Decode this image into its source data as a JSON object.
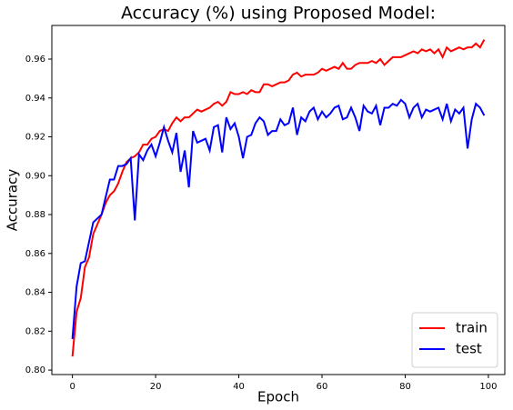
{
  "chart_data": {
    "type": "line",
    "title": "Accuracy (%) using Proposed Model:",
    "x_label": "Epoch",
    "y_label": "Accuracy",
    "x": [
      0,
      1,
      2,
      3,
      4,
      5,
      6,
      7,
      8,
      9,
      10,
      11,
      12,
      13,
      14,
      15,
      16,
      17,
      18,
      19,
      20,
      21,
      22,
      23,
      24,
      25,
      26,
      27,
      28,
      29,
      30,
      31,
      32,
      33,
      34,
      35,
      36,
      37,
      38,
      39,
      40,
      41,
      42,
      43,
      44,
      45,
      46,
      47,
      48,
      49,
      50,
      51,
      52,
      53,
      54,
      55,
      56,
      57,
      58,
      59,
      60,
      61,
      62,
      63,
      64,
      65,
      66,
      67,
      68,
      69,
      70,
      71,
      72,
      73,
      74,
      75,
      76,
      77,
      78,
      79,
      80,
      81,
      82,
      83,
      84,
      85,
      86,
      87,
      88,
      89,
      90,
      91,
      92,
      93,
      94,
      95,
      96,
      97,
      98,
      99
    ],
    "series": [
      {
        "name": "train",
        "color": "#ff0000",
        "values": [
          0.807,
          0.83,
          0.837,
          0.853,
          0.858,
          0.87,
          0.875,
          0.88,
          0.886,
          0.89,
          0.892,
          0.896,
          0.902,
          0.907,
          0.909,
          0.91,
          0.912,
          0.916,
          0.916,
          0.919,
          0.92,
          0.923,
          0.924,
          0.923,
          0.927,
          0.93,
          0.928,
          0.93,
          0.93,
          0.932,
          0.934,
          0.933,
          0.934,
          0.935,
          0.937,
          0.938,
          0.936,
          0.938,
          0.943,
          0.942,
          0.942,
          0.943,
          0.942,
          0.944,
          0.943,
          0.943,
          0.947,
          0.947,
          0.946,
          0.947,
          0.948,
          0.948,
          0.949,
          0.952,
          0.953,
          0.951,
          0.952,
          0.952,
          0.952,
          0.953,
          0.955,
          0.954,
          0.955,
          0.956,
          0.955,
          0.958,
          0.955,
          0.955,
          0.957,
          0.958,
          0.958,
          0.958,
          0.959,
          0.958,
          0.96,
          0.957,
          0.959,
          0.961,
          0.961,
          0.961,
          0.962,
          0.963,
          0.964,
          0.963,
          0.965,
          0.964,
          0.965,
          0.963,
          0.965,
          0.961,
          0.966,
          0.964,
          0.965,
          0.966,
          0.965,
          0.966,
          0.966,
          0.968,
          0.966,
          0.97
        ]
      },
      {
        "name": "test",
        "color": "#0000ff",
        "values": [
          0.816,
          0.843,
          0.855,
          0.856,
          0.866,
          0.876,
          0.878,
          0.88,
          0.889,
          0.898,
          0.898,
          0.905,
          0.905,
          0.906,
          0.909,
          0.877,
          0.911,
          0.908,
          0.913,
          0.916,
          0.91,
          0.917,
          0.925,
          0.918,
          0.912,
          0.922,
          0.902,
          0.913,
          0.894,
          0.923,
          0.917,
          0.918,
          0.919,
          0.913,
          0.925,
          0.926,
          0.912,
          0.93,
          0.924,
          0.927,
          0.92,
          0.909,
          0.92,
          0.921,
          0.927,
          0.93,
          0.928,
          0.921,
          0.923,
          0.923,
          0.929,
          0.926,
          0.927,
          0.935,
          0.921,
          0.93,
          0.928,
          0.933,
          0.935,
          0.929,
          0.933,
          0.93,
          0.932,
          0.935,
          0.936,
          0.929,
          0.93,
          0.935,
          0.93,
          0.923,
          0.936,
          0.933,
          0.932,
          0.936,
          0.926,
          0.935,
          0.935,
          0.937,
          0.936,
          0.939,
          0.937,
          0.93,
          0.935,
          0.937,
          0.93,
          0.934,
          0.933,
          0.934,
          0.935,
          0.929,
          0.937,
          0.928,
          0.934,
          0.932,
          0.935,
          0.914,
          0.929,
          0.937,
          0.935,
          0.931
        ]
      }
    ],
    "xlim": [
      -4.95,
      103.95
    ],
    "xticks": [
      0,
      20,
      40,
      60,
      80,
      100
    ],
    "ylim": [
      0.7977,
      0.9773
    ],
    "yticks": [
      {
        "value": 0.8,
        "label": "0.80"
      },
      0.82,
      0.84,
      0.86,
      0.88,
      {
        "value": 0.9,
        "label": "0.90"
      },
      0.92,
      0.94,
      0.96
    ],
    "legend": "lower right"
  }
}
